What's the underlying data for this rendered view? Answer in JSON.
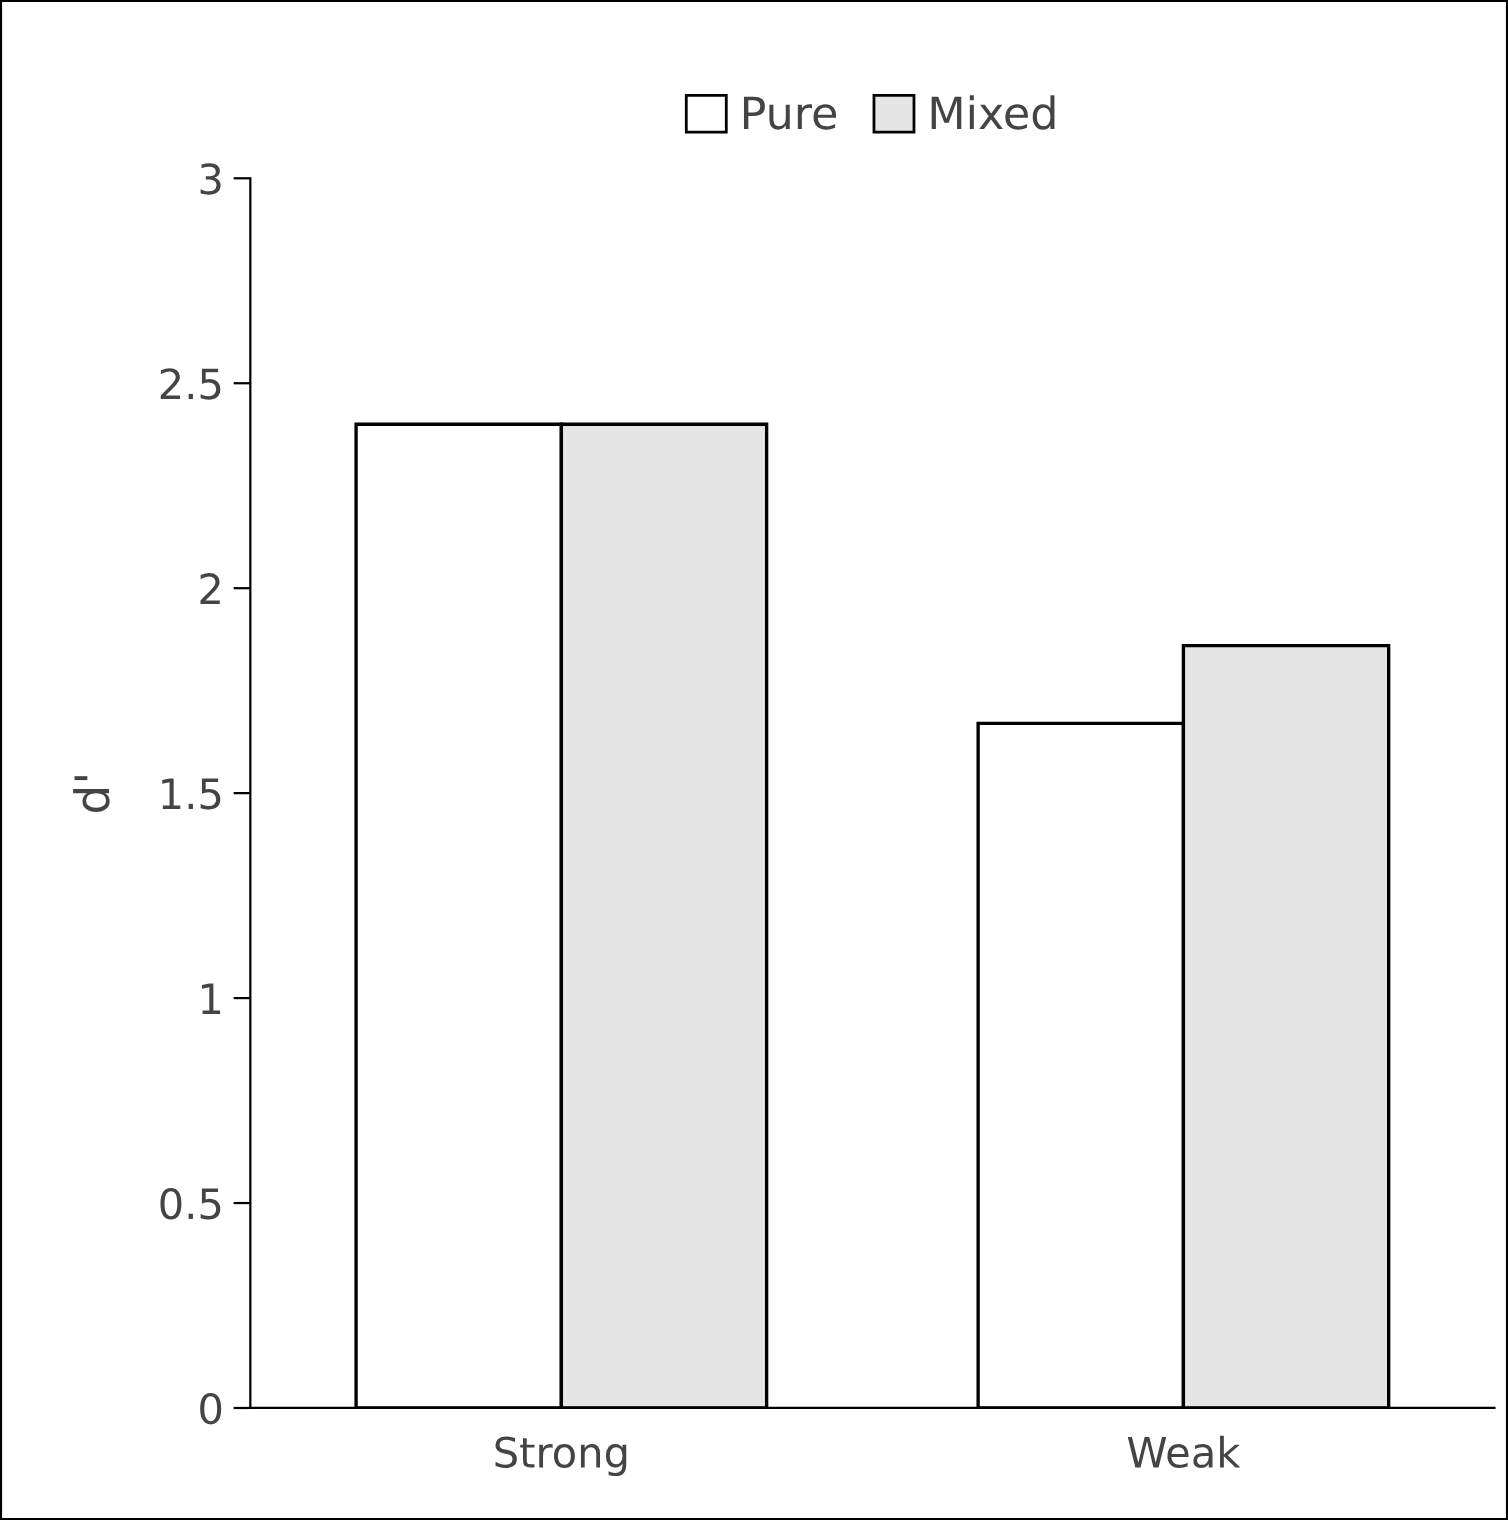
{
  "chart_data": {
    "type": "bar",
    "ylabel": "d'",
    "categories": [
      "Strong",
      "Weak"
    ],
    "series": [
      {
        "name": "Pure",
        "color": "#ffffff",
        "values": [
          2.4,
          1.67
        ]
      },
      {
        "name": "Mixed",
        "color": "#e6e5e6",
        "values": [
          2.4,
          1.86
        ]
      }
    ],
    "ylim": [
      0,
      3
    ],
    "yticks": [
      0,
      0.5,
      1,
      1.5,
      2,
      2.5,
      3
    ],
    "grid": false,
    "legend": "top"
  }
}
